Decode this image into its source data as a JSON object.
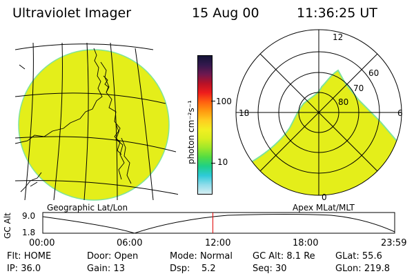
{
  "header": {
    "instrument": "Ultraviolet Imager",
    "date": "15 Aug 00",
    "time": "11:36:25 UT"
  },
  "colors": {
    "fill": "#e4ee1a",
    "edge": "#7ee39b",
    "line": "#000000",
    "marker": "#e00000"
  },
  "geo_panel": {
    "caption": "Geographic Lat/Lon"
  },
  "polar_panel": {
    "caption": "Apex MLat/MLT",
    "mlt_labels": [
      "12",
      "18",
      "6",
      "0"
    ],
    "mlat_labels": [
      "60",
      "70",
      "80"
    ]
  },
  "colorbar": {
    "unit_label": "photon cm⁻²s⁻¹",
    "ticks": [
      "100",
      "10"
    ],
    "scale": "log",
    "stops": [
      "#141436",
      "#34184e",
      "#6e184f",
      "#b81226",
      "#ee1c1c",
      "#ff6010",
      "#ff9a10",
      "#ffcc20",
      "#f2ef22",
      "#d8ee20",
      "#9ee82a",
      "#54dc42",
      "#1ed088",
      "#2ecad8",
      "#8fdcea",
      "#d6eef2"
    ]
  },
  "timeline": {
    "ylabel": "GC Alt",
    "y_ticks": [
      "9.0",
      "1.8"
    ],
    "x_ticks": [
      "00:00",
      "06:00",
      "12:00",
      "18:00",
      "23:59"
    ],
    "current_time_hours": 11.6
  },
  "status": {
    "row1": [
      {
        "key": "Flt:",
        "value": "HOME"
      },
      {
        "key": "Door:",
        "value": "Open"
      },
      {
        "key": "Mode:",
        "value": "Normal"
      },
      {
        "key": "GC Alt:",
        "value": "8.1 Re"
      },
      {
        "key": "GLat:",
        "value": "55.6"
      }
    ],
    "row2": [
      {
        "key": "IP:",
        "value": "36.0"
      },
      {
        "key": "Gain:",
        "value": "13"
      },
      {
        "key": "Dsp:",
        "value": "5.2"
      },
      {
        "key": "Seq:",
        "value": "30"
      },
      {
        "key": "GLon:",
        "value": "219.8"
      }
    ]
  }
}
